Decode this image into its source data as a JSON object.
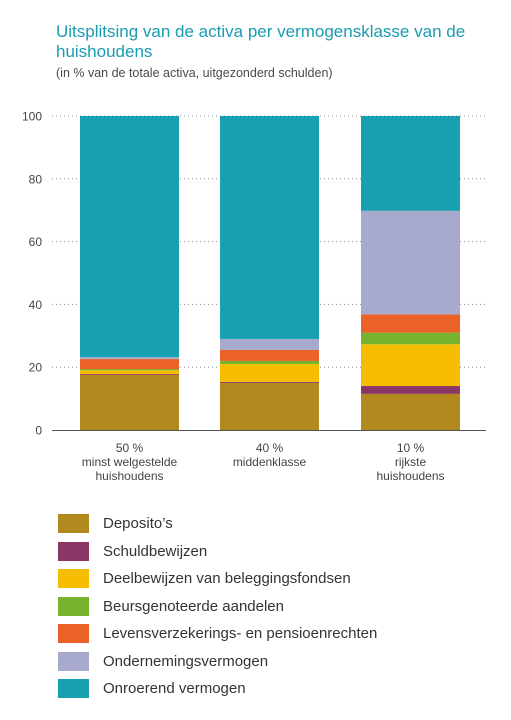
{
  "header": {
    "title": "Uitsplitsing van de activa per vermogensklasse van de huishoudens",
    "subtitle": "(in % van de totale activa, uitgezonderd schulden)"
  },
  "chart_data": {
    "type": "bar",
    "stacked": true,
    "title": "Uitsplitsing van de activa per vermogensklasse van de huishoudens",
    "subtitle": "(in % van de totale activa, uitgezonderd schulden)",
    "xlabel": "",
    "ylabel": "",
    "ylim": [
      0,
      100
    ],
    "yticks": [
      0,
      20,
      40,
      60,
      80,
      100
    ],
    "grid": "horizontal-dotted",
    "legend_position": "bottom",
    "categories": [
      [
        "50 %",
        "minst welgestelde",
        "huishoudens"
      ],
      [
        "40 %",
        "middenklasse"
      ],
      [
        "10 %",
        "rijkste",
        "huishoudens"
      ]
    ],
    "series": [
      {
        "name": "Deposito’s",
        "color": "#b08a1e",
        "values": [
          17.5,
          15,
          11.5
        ]
      },
      {
        "name": "Schuldbewijzen",
        "color": "#8b3766",
        "values": [
          0.3,
          0.3,
          2.5
        ]
      },
      {
        "name": "Deelbewijzen van beleggingsfondsen",
        "color": "#f7bd00",
        "values": [
          1.2,
          5.7,
          13.3
        ]
      },
      {
        "name": "Beursgenoteerde aandelen",
        "color": "#76b32e",
        "values": [
          0.4,
          1.0,
          3.7
        ]
      },
      {
        "name": "Levensverzekerings- en pensioenrechten",
        "color": "#ea6228",
        "values": [
          3.2,
          3.5,
          5.8
        ]
      },
      {
        "name": "Ondernemingsvermogen",
        "color": "#a7a9cd",
        "values": [
          0.6,
          3.5,
          33.0
        ]
      },
      {
        "name": "Onroerend vermogen",
        "color": "#19a0b0",
        "values": [
          76.8,
          71.0,
          30.2
        ]
      }
    ]
  }
}
